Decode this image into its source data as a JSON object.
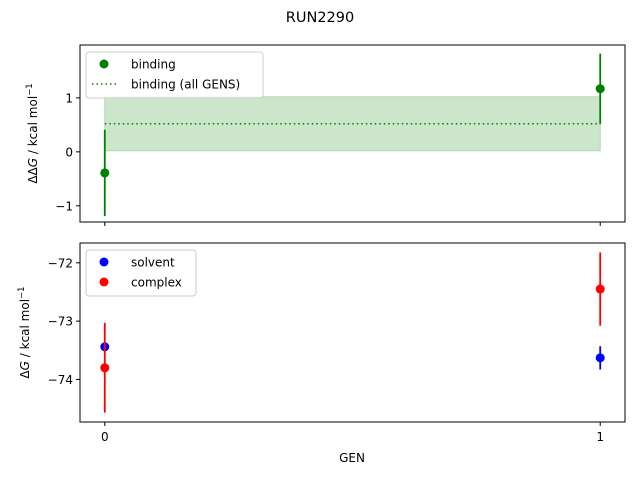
{
  "chart_data": {
    "title": "RUN2290",
    "xlabel": "GEN",
    "x_ticks": [
      0,
      1
    ],
    "panels": [
      {
        "type": "scatter",
        "ylabel": "ΔΔG / kcal mol⁻¹",
        "ylabel_main": "ΔΔ",
        "ylabel_italic": "G",
        "ylabel_unit": " / kcal mol",
        "ylabel_sup": "−1",
        "xlim": [
          -0.05,
          1.05
        ],
        "ylim": [
          -1.3,
          1.98
        ],
        "y_ticks": [
          -1,
          0,
          1
        ],
        "y_tick_labels": [
          "−1",
          "0",
          "1"
        ],
        "show_x_tick_labels": false,
        "legend": "top-left",
        "series": [
          {
            "name": "binding",
            "color": "#008000",
            "kind": "errorbar",
            "x": [
              0,
              1
            ],
            "y": [
              -0.39,
              1.17
            ],
            "err": [
              0.8,
              0.65
            ]
          },
          {
            "name": "binding (all GENS)",
            "color": "#008000",
            "kind": "hline-band",
            "x": [
              0,
              1
            ],
            "y": 0.52,
            "err": 0.5,
            "band_color": "#cce6cc"
          }
        ]
      },
      {
        "type": "scatter",
        "ylabel": "ΔG / kcal mol⁻¹",
        "ylabel_main": "Δ",
        "ylabel_italic": "G",
        "ylabel_unit": " / kcal mol",
        "ylabel_sup": "−1",
        "xlim": [
          -0.05,
          1.05
        ],
        "ylim": [
          -74.73,
          -71.66
        ],
        "y_ticks": [
          -74,
          -73,
          -72
        ],
        "y_tick_labels": [
          "−74",
          "−73",
          "−72"
        ],
        "show_x_tick_labels": true,
        "legend": "top-left",
        "series": [
          {
            "name": "solvent",
            "color": "#0000ff",
            "kind": "errorbar",
            "x": [
              0,
              1
            ],
            "y": [
              -73.44,
              -73.63
            ],
            "err": [
              0.02,
              0.2
            ]
          },
          {
            "name": "complex",
            "color": "#ff0000",
            "kind": "errorbar",
            "x": [
              0,
              1
            ],
            "y": [
              -73.8,
              -72.45
            ],
            "err": [
              0.77,
              0.63
            ]
          }
        ]
      }
    ]
  }
}
